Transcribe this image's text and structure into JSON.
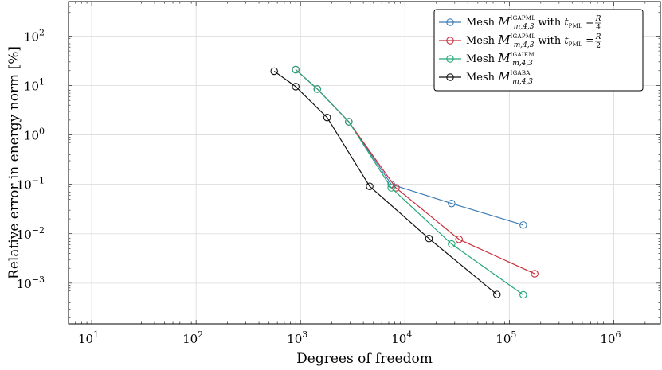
{
  "chart_data": {
    "type": "line",
    "xscale": "log",
    "yscale": "log",
    "xlim": [
      6,
      2800000
    ],
    "ylim": [
      0.00015,
      500
    ],
    "xlabel": "Degrees of freedom",
    "ylabel": "Relative error in energy norm [%]",
    "grid": true,
    "legend_position": "top-right",
    "x_ticks": [
      {
        "value": 10,
        "base": "10",
        "exp": "1"
      },
      {
        "value": 100,
        "base": "10",
        "exp": "2"
      },
      {
        "value": 1000,
        "base": "10",
        "exp": "3"
      },
      {
        "value": 10000,
        "base": "10",
        "exp": "4"
      },
      {
        "value": 100000,
        "base": "10",
        "exp": "5"
      },
      {
        "value": 1000000,
        "base": "10",
        "exp": "6"
      }
    ],
    "y_ticks": [
      {
        "value": 0.001,
        "base": "10",
        "exp": "−3"
      },
      {
        "value": 0.01,
        "base": "10",
        "exp": "−2"
      },
      {
        "value": 0.1,
        "base": "10",
        "exp": "−1"
      },
      {
        "value": 1,
        "base": "10",
        "exp": "0"
      },
      {
        "value": 10,
        "base": "10",
        "exp": "1"
      },
      {
        "value": 100,
        "base": "10",
        "exp": "2"
      }
    ],
    "series": [
      {
        "color": "#3e7cb5",
        "legend": {
          "prefix": "Mesh ",
          "script": "M",
          "sup": "IGAPML",
          "sub": "m,4,3",
          "mid": " with ",
          "t": "t",
          "tsub": "PML",
          "eq": " = ",
          "num": "R",
          "den": "4"
        },
        "x": [
          900,
          1450,
          2900,
          7400,
          28000,
          136000
        ],
        "y": [
          21,
          8.5,
          1.85,
          0.1,
          0.041,
          0.015
        ]
      },
      {
        "color": "#c8303a",
        "legend": {
          "prefix": "Mesh ",
          "script": "M",
          "sup": "IGAPML",
          "sub": "m,4,3",
          "mid": " with ",
          "t": "t",
          "tsub": "PML",
          "eq": " = ",
          "num": "R",
          "den": "2"
        },
        "x": [
          900,
          1450,
          2900,
          8200,
          33000,
          175000
        ],
        "y": [
          21,
          8.5,
          1.85,
          0.085,
          0.0077,
          0.00155
        ]
      },
      {
        "color": "#25a878",
        "legend": {
          "prefix": "Mesh ",
          "script": "M",
          "sup": "IGAIEM",
          "sub": "m,4,3"
        },
        "x": [
          900,
          1450,
          2900,
          7400,
          28000,
          136000
        ],
        "y": [
          21,
          8.5,
          1.85,
          0.085,
          0.0062,
          0.00058
        ]
      },
      {
        "color": "#111111",
        "legend": {
          "prefix": "Mesh ",
          "script": "M",
          "sup": "IGABA",
          "sub": "m,4,3"
        },
        "x": [
          560,
          900,
          1800,
          4600,
          17000,
          76000
        ],
        "y": [
          19.5,
          9.5,
          2.25,
          0.091,
          0.008,
          0.00059
        ]
      }
    ]
  }
}
